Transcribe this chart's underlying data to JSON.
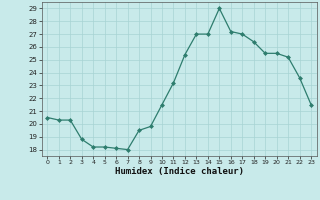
{
  "x": [
    0,
    1,
    2,
    3,
    4,
    5,
    6,
    7,
    8,
    9,
    10,
    11,
    12,
    13,
    14,
    15,
    16,
    17,
    18,
    19,
    20,
    21,
    22,
    23
  ],
  "y": [
    20.5,
    20.3,
    20.3,
    18.8,
    18.2,
    18.2,
    18.1,
    18.0,
    19.5,
    19.8,
    21.5,
    23.2,
    25.4,
    27.0,
    27.0,
    29.0,
    27.2,
    27.0,
    26.4,
    25.5,
    25.5,
    25.2,
    23.6,
    21.5
  ],
  "xlabel": "Humidex (Indice chaleur)",
  "ylabel": "",
  "line_color": "#2e7d6e",
  "marker_color": "#2e7d6e",
  "bg_color": "#c8eaea",
  "grid_color": "#a8d4d4",
  "ylim": [
    17.5,
    29.5
  ],
  "xlim": [
    -0.5,
    23.5
  ],
  "yticks": [
    18,
    19,
    20,
    21,
    22,
    23,
    24,
    25,
    26,
    27,
    28,
    29
  ],
  "xticks": [
    0,
    1,
    2,
    3,
    4,
    5,
    6,
    7,
    8,
    9,
    10,
    11,
    12,
    13,
    14,
    15,
    16,
    17,
    18,
    19,
    20,
    21,
    22,
    23
  ]
}
